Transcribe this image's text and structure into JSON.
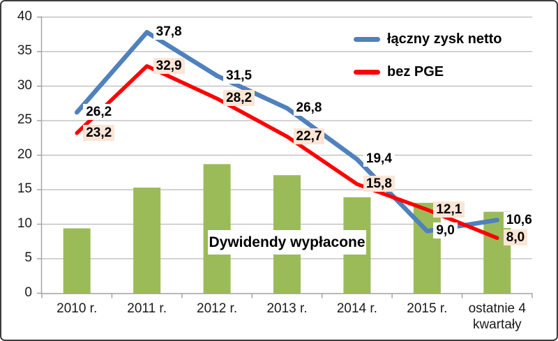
{
  "chart_data": {
    "type": "bar+line combo",
    "categories": [
      "2010 r.",
      "2011 r.",
      "2012 r.",
      "2013 r.",
      "2014 r.",
      "2015 r.",
      "ostatnie 4 kwartały"
    ],
    "y_axis": {
      "min": 0,
      "max": 40,
      "step": 5,
      "tick_labels": [
        "0",
        "5",
        "10",
        "15",
        "20",
        "25",
        "30",
        "35",
        "40"
      ]
    },
    "grid": true,
    "series": [
      {
        "name": "Dywidendy wypłacone",
        "type": "bar",
        "color": "#9bbb59",
        "values": [
          9.4,
          15.3,
          18.7,
          17.1,
          13.9,
          13.1,
          11.8
        ]
      },
      {
        "name": "łączny zysk netto",
        "type": "line",
        "color": "#4f81bd",
        "stroke_width": 6.5,
        "values": [
          26.2,
          37.8,
          31.5,
          26.8,
          19.4,
          9.0,
          10.6
        ],
        "point_labels": [
          "26,2",
          "37,8",
          "31,5",
          "26,8",
          "19,4",
          "9,0",
          "10,6"
        ],
        "label_bg": "#ffffff"
      },
      {
        "name": "bez PGE",
        "type": "line",
        "color": "#fe0000",
        "stroke_width": 5.5,
        "values": [
          23.2,
          32.9,
          28.2,
          22.7,
          15.8,
          12.1,
          8.0
        ],
        "point_labels": [
          "23,2",
          "32,9",
          "28,2",
          "22,7",
          "15,8",
          "12,1",
          "8,0"
        ],
        "label_bg": "#fbe5d6"
      }
    ],
    "legend": {
      "position": "top-right",
      "entries": [
        {
          "label": "łączny zysk netto",
          "color": "#4f81bd"
        },
        {
          "label": "bez PGE",
          "color": "#fe0000"
        }
      ]
    },
    "annotation": {
      "text": "Dywidendy wypłacone"
    },
    "colors": {
      "gridline": "#b9b9b9",
      "axis": "#a0a0a0",
      "text": "#1a1a1a"
    }
  }
}
